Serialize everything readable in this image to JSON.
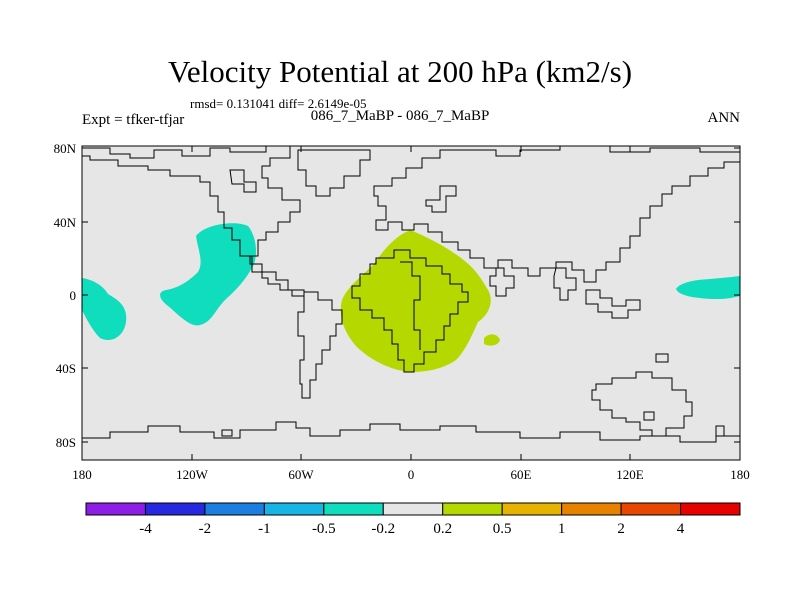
{
  "title": "Velocity Potential at 200 hPa (km2/s)",
  "stats": "rmsd= 0.131041 diff= 2.6149e-05",
  "left_label": "Expt = tfker-tfjar",
  "center_label": "086_7_MaBP - 086_7_MaBP",
  "right_label": "ANN",
  "y_ticks": [
    "80N",
    "40N",
    "0",
    "40S",
    "80S"
  ],
  "x_ticks": [
    "180",
    "120W",
    "60W",
    "0",
    "60E",
    "120E",
    "180"
  ],
  "colorbar": {
    "colors": [
      "#8c1ee6",
      "#2828e0",
      "#1c7ee0",
      "#18b4e6",
      "#10dcbe",
      "#e6e6e6",
      "#b4d800",
      "#e6b400",
      "#e68200",
      "#e64600",
      "#e60000"
    ],
    "labels": [
      "-4",
      "-2",
      "-1",
      "-0.5",
      "-0.2",
      "0.2",
      "0.5",
      "1",
      "2",
      "4"
    ]
  },
  "colors": {
    "background": "#e6e6e6",
    "negative_fill": "#10dcbe",
    "positive_fill": "#b4d800",
    "coastline": "#000000"
  }
}
